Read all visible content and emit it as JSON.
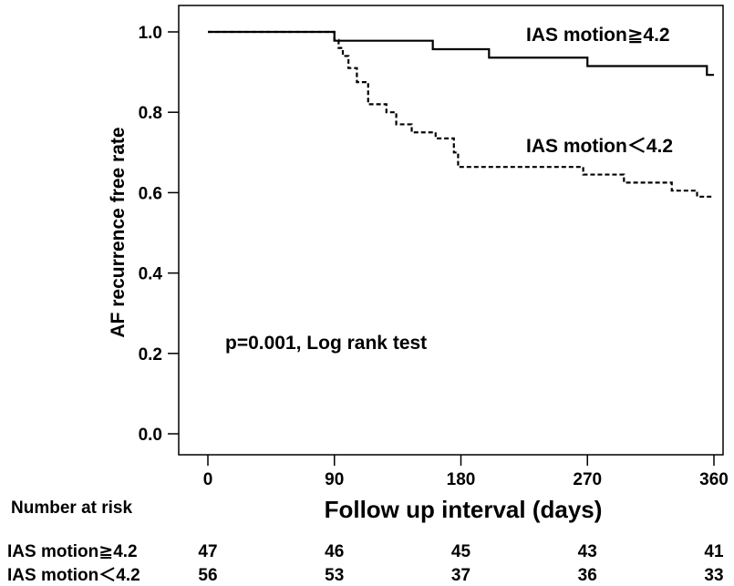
{
  "chart_data": {
    "type": "line",
    "xlabel": "Follow up interval (days)",
    "ylabel": "AF recurrence free rate",
    "xlim": [
      0,
      360
    ],
    "ylim": [
      0,
      1
    ],
    "x_ticks": [
      "0",
      "90",
      "180",
      "270",
      "360"
    ],
    "y_ticks": [
      "0.0",
      "0.2",
      "0.4",
      "0.6",
      "0.8",
      "1.0"
    ],
    "annotation": "p=0.001, Log rank test",
    "series": [
      {
        "name": "IAS motion≧4.2",
        "style": "solid",
        "x": [
          0,
          90,
          160,
          200,
          270,
          355,
          360
        ],
        "y": [
          1.0,
          0.978,
          0.957,
          0.936,
          0.915,
          0.893,
          0.893
        ]
      },
      {
        "name": "IAS motion＜4.2",
        "style": "dashed",
        "x": [
          0,
          90,
          93,
          96,
          100,
          106,
          114,
          127,
          134,
          145,
          162,
          175,
          178,
          265,
          267,
          296,
          310,
          330,
          348,
          360
        ],
        "y": [
          1.0,
          0.98,
          0.96,
          0.94,
          0.91,
          0.875,
          0.82,
          0.8,
          0.77,
          0.75,
          0.735,
          0.7,
          0.664,
          0.664,
          0.645,
          0.625,
          0.625,
          0.605,
          0.59,
          0.59
        ]
      }
    ],
    "grid": false,
    "legend": "inline labels at top-right"
  },
  "risk_table": {
    "title": "Number at risk",
    "rows": [
      {
        "label": "IAS motion≧4.2",
        "values": [
          "47",
          "46",
          "45",
          "43",
          "41"
        ]
      },
      {
        "label": "IAS motion＜4.2",
        "values": [
          "56",
          "53",
          "37",
          "36",
          "33"
        ]
      }
    ]
  }
}
